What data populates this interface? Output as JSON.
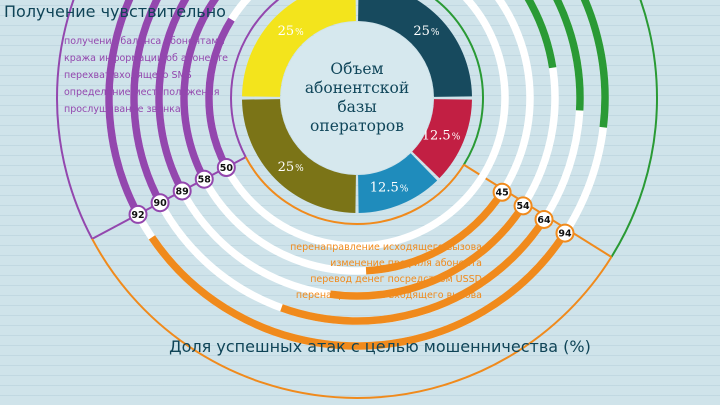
{
  "colors": {
    "background": "#cfe3ea",
    "purple": "#9347ae",
    "orange": "#f08a1c",
    "green": "#2a9a35",
    "track": "#ffffff",
    "title_text": "#0f4457"
  },
  "chart_data": [
    {
      "type": "pie",
      "variant": "donut",
      "title_lines": [
        "Объем",
        "абонентской",
        "базы",
        "операторов"
      ],
      "slices": [
        {
          "value": 25,
          "label": "25",
          "unit": "%",
          "color": "#174a5e"
        },
        {
          "value": 12.5,
          "label": "12.5",
          "unit": "%",
          "color": "#c21f43"
        },
        {
          "value": 12.5,
          "label": "12.5",
          "unit": "%",
          "color": "#1f8cbc"
        },
        {
          "value": 25,
          "label": "25",
          "unit": "%",
          "color": "#7b7417"
        },
        {
          "value": 25,
          "label": "25",
          "unit": "%",
          "color": "#f3e41c"
        }
      ]
    },
    {
      "type": "bar",
      "variant": "radial",
      "title": "Получение чувствительно",
      "color": "#9347ae",
      "categories": [
        "прослушивание звонка",
        "определение  местоположения",
        "перехват входящего SMS",
        "кража информации об абоненте",
        "получение баланса абонентами"
      ],
      "values": [
        50,
        58,
        89,
        90,
        92
      ],
      "ylim": [
        0,
        100
      ]
    },
    {
      "type": "bar",
      "variant": "radial",
      "title": "Доля успешных атак с целью мошенничества (%)",
      "color": "#f08a1c",
      "categories": [
        "перенаправление исходящего вызова",
        "изменение профиля абонента",
        "перевод денег посредством USSD",
        "перенаправление входящего вызова"
      ],
      "values": [
        45,
        54,
        64,
        94
      ],
      "ylim": [
        0,
        100
      ]
    },
    {
      "type": "bar",
      "variant": "radial",
      "color": "#2a9a35",
      "values": [
        66,
        76,
        79
      ],
      "ylim": [
        0,
        100
      ]
    }
  ]
}
